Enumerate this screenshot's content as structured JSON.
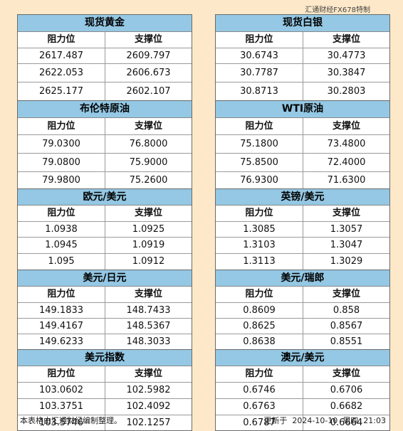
{
  "watermark": "汇通财经FX678特制",
  "header": {
    "resistance": "阻力位",
    "support": "支撑位"
  },
  "left_panels": [
    {
      "title": "现货黄金",
      "rows": [
        [
          "2617.487",
          "2609.797"
        ],
        [
          "2622.053",
          "2606.673"
        ],
        [
          "2625.177",
          "2602.107"
        ]
      ]
    },
    {
      "title": "布伦特原油",
      "rows": [
        [
          "79.0300",
          "76.8000"
        ],
        [
          "79.0800",
          "75.9000"
        ],
        [
          "79.9800",
          "75.2600"
        ]
      ]
    },
    {
      "title": "欧元/美元",
      "rows": [
        [
          "1.0938",
          "1.0925"
        ],
        [
          "1.0945",
          "1.0919"
        ],
        [
          "1.095",
          "1.0912"
        ]
      ]
    },
    {
      "title": "美元/日元",
      "rows": [
        [
          "149.1833",
          "148.7433"
        ],
        [
          "149.4167",
          "148.5367"
        ],
        [
          "149.6233",
          "148.3033"
        ]
      ]
    },
    {
      "title": "美元指数",
      "rows": [
        [
          "103.0602",
          "102.5982"
        ],
        [
          "103.3751",
          "102.4092"
        ],
        [
          "103.5746",
          "102.1257"
        ]
      ]
    }
  ],
  "right_panels": [
    {
      "title": "现货白银",
      "rows": [
        [
          "30.6743",
          "30.4773"
        ],
        [
          "30.7787",
          "30.3847"
        ],
        [
          "30.8713",
          "30.2803"
        ]
      ]
    },
    {
      "title": "WTI原油",
      "rows": [
        [
          "75.1800",
          "73.4800"
        ],
        [
          "75.8500",
          "72.4000"
        ],
        [
          "76.9300",
          "71.6300"
        ]
      ]
    },
    {
      "title": "英镑/美元",
      "rows": [
        [
          "1.3085",
          "1.3057"
        ],
        [
          "1.3103",
          "1.3047"
        ],
        [
          "1.3113",
          "1.3029"
        ]
      ]
    },
    {
      "title": "美元/瑞郎",
      "rows": [
        [
          "0.8609",
          "0.858"
        ],
        [
          "0.8625",
          "0.8567"
        ],
        [
          "0.8638",
          "0.8551"
        ]
      ]
    },
    {
      "title": "澳元/美元",
      "rows": [
        [
          "0.6746",
          "0.6706"
        ],
        [
          "0.6763",
          "0.6682"
        ],
        [
          "0.6787",
          "0.6664"
        ]
      ]
    }
  ],
  "footer": {
    "note": "本表格由汇通财经编制整理。",
    "updated": "更新于  2024-10-10  周四  21:03"
  }
}
